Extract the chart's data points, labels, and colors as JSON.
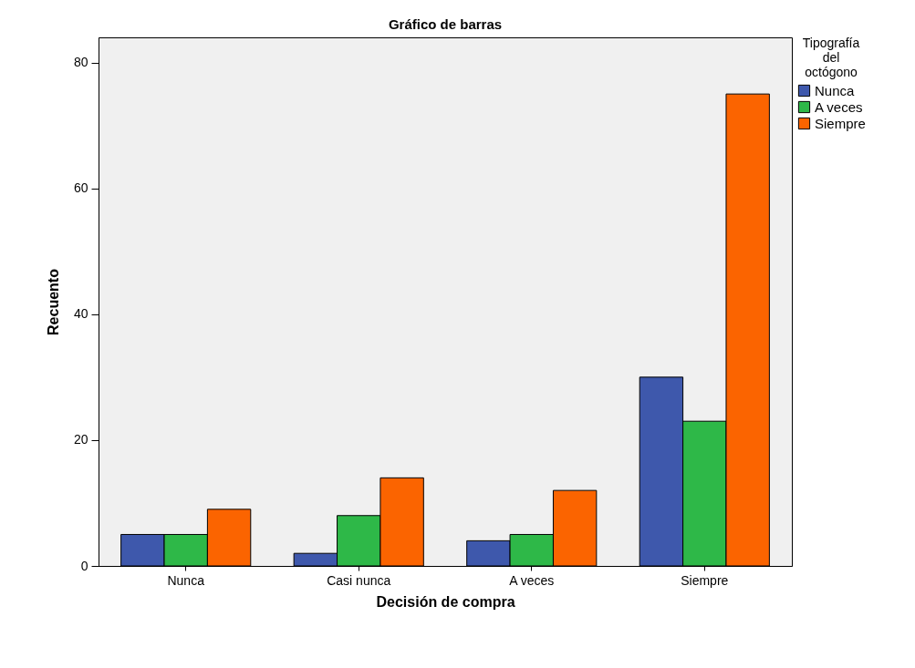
{
  "chart_data": {
    "type": "bar",
    "title": "Gráfico de barras",
    "xlabel": "Decisión de compra",
    "ylabel": "Recuento",
    "legend_title": "Tipografía del octógono",
    "categories": [
      "Nunca",
      "Casi nunca",
      "A veces",
      "Siempre"
    ],
    "series": [
      {
        "name": "Nunca",
        "color": "#3e58ac",
        "values": [
          5,
          2,
          4,
          30
        ]
      },
      {
        "name": "A veces",
        "color": "#2eb848",
        "values": [
          5,
          8,
          5,
          23
        ]
      },
      {
        "name": "Siempre",
        "color": "#fb6400",
        "values": [
          9,
          14,
          12,
          75
        ]
      }
    ],
    "ylim": [
      0,
      84
    ],
    "yticks": [
      0,
      20,
      40,
      60,
      80
    ],
    "grid": false,
    "legend": "top right"
  }
}
